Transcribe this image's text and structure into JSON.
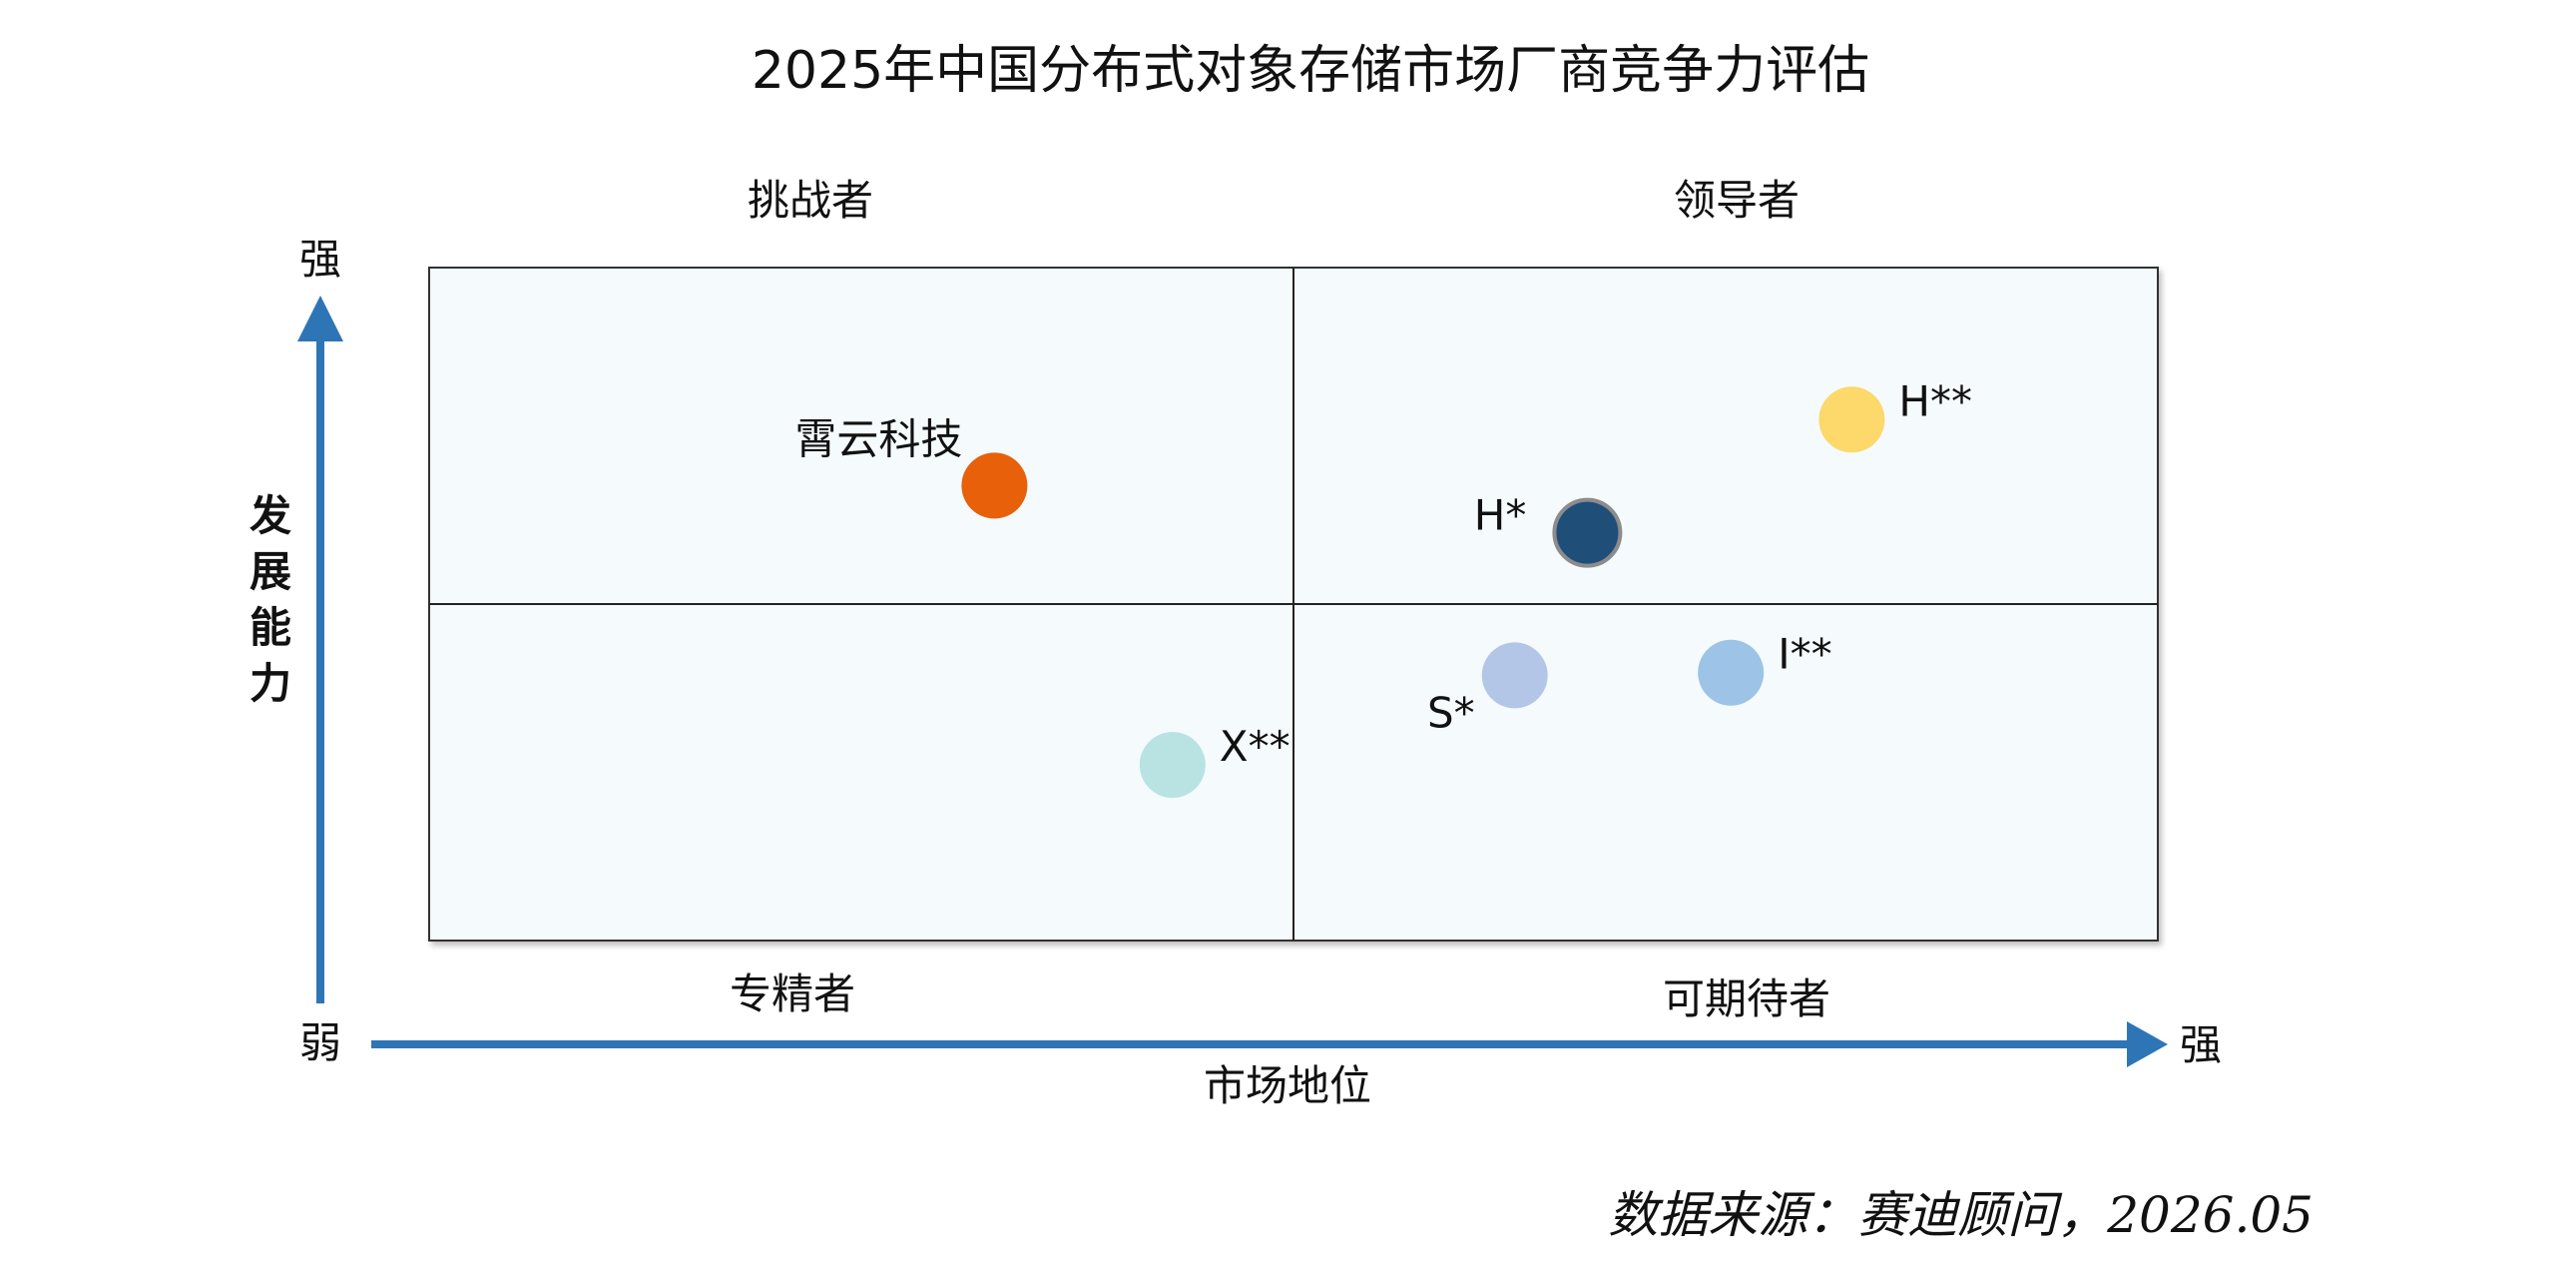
{
  "chart_data": {
    "type": "scatter",
    "title": "2025年中国分布式对象存储市场厂商竞争力评估",
    "xlabel": "市场地位",
    "ylabel": "发展能力",
    "axis_weak_label": "弱",
    "x_strong_label": "强",
    "y_strong_label": "强",
    "xlim": [
      0,
      100
    ],
    "ylim": [
      0,
      100
    ],
    "quadrants": {
      "top_left": "挑战者",
      "top_right": "领导者",
      "bottom_left": "专精者",
      "bottom_right": "可期待者"
    },
    "points": [
      {
        "label": "霄云科技",
        "x": 32.7,
        "y": 67.6,
        "color": "#E8600A",
        "label_side": "top-left"
      },
      {
        "label": "H**",
        "x": 82.3,
        "y": 77.4,
        "color": "#FDD86B",
        "label_side": "right"
      },
      {
        "label": "H*",
        "x": 67.0,
        "y": 60.6,
        "color": "#1F4E79",
        "label_side": "left",
        "outline": "#8c8c8c"
      },
      {
        "label": "S*",
        "x": 62.8,
        "y": 39.4,
        "color": "#B4C6E7",
        "label_side": "bottom-left"
      },
      {
        "label": "I**",
        "x": 75.3,
        "y": 39.8,
        "color": "#9DC3E6",
        "label_side": "right"
      },
      {
        "label": "X**",
        "x": 43.0,
        "y": 26.1,
        "color": "#B8E3E2",
        "label_side": "right"
      }
    ],
    "grid": false,
    "colors": {
      "plot_background": "#F5FAFD",
      "plot_border": "#333333",
      "axis_arrow": "#2E75B6"
    }
  },
  "source": "数据来源：赛迪顾问，2026.05"
}
